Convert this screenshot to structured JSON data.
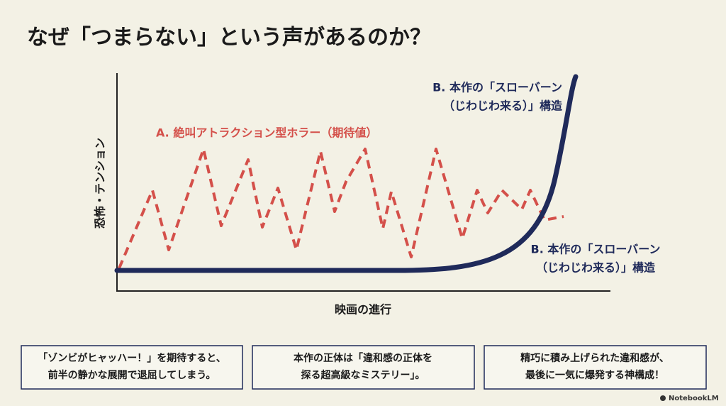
{
  "title": "なぜ「つまらない」という声があるのか？",
  "chart": {
    "y_label": "恐怖・テンション",
    "x_label": "映画の進行",
    "series_a_label": "A. 絶叫アトラクション型ホラー（期待値）",
    "series_b_label_top": [
      "B. 本作の「スローバーン",
      "（じわじわ来る）」構造"
    ],
    "series_b_label_bottom": [
      "B. 本作の「スローバーン",
      "（じわじわ来る）」構造"
    ]
  },
  "boxes": [
    [
      "「ゾンビがヒャッハー！」を期待すると、",
      "前半の静かな展開で退屈してしまう。"
    ],
    [
      "本作の正体は「違和感の正体を",
      "探る超高級なミステリー」。"
    ],
    [
      "精巧に積み上げられた違和感が、",
      "最後に一気に爆発する神構成！"
    ]
  ],
  "footer": "NotebookLM"
}
